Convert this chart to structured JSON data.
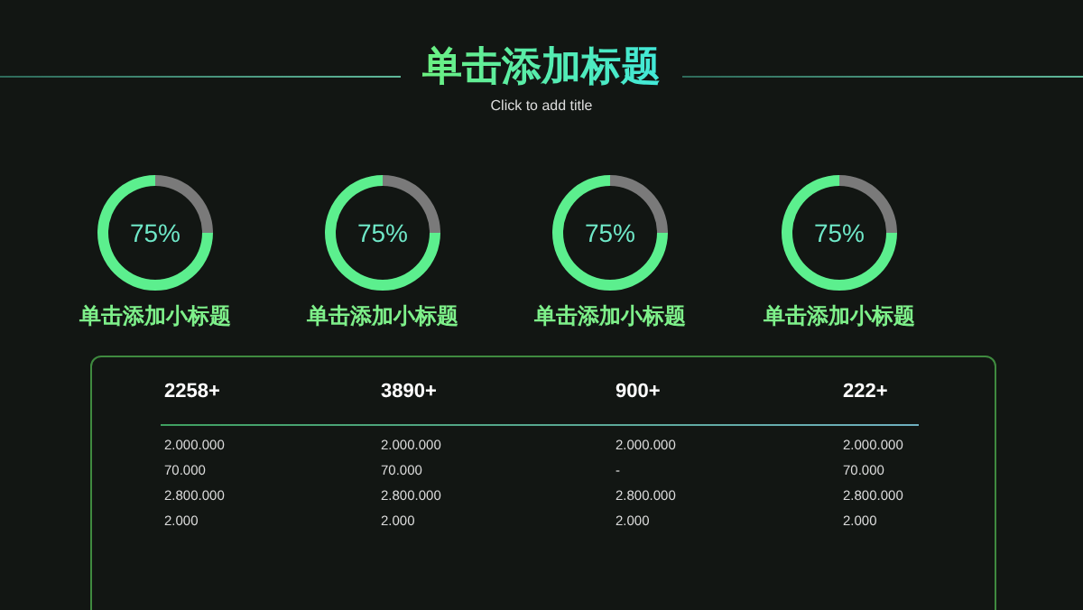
{
  "chart_data": [
    {
      "type": "donut",
      "title": "单击添加小标题",
      "categories": [
        null,
        null
      ],
      "values": [
        75,
        25
      ],
      "colors": [
        "#5cef8e",
        "#7a7a7a"
      ],
      "annotations": [
        "75%"
      ]
    },
    {
      "type": "donut",
      "title": "单击添加小标题",
      "categories": [
        null,
        null
      ],
      "values": [
        75,
        25
      ],
      "colors": [
        "#5cef8e",
        "#7a7a7a"
      ],
      "annotations": [
        "75%"
      ]
    },
    {
      "type": "donut",
      "title": "单击添加小标题",
      "categories": [
        null,
        null
      ],
      "values": [
        75,
        25
      ],
      "colors": [
        "#5cef8e",
        "#7a7a7a"
      ],
      "annotations": [
        "75%"
      ]
    },
    {
      "type": "donut",
      "title": "单击添加小标题",
      "categories": [
        null,
        null
      ],
      "values": [
        75,
        25
      ],
      "colors": [
        "#5cef8e",
        "#7a7a7a"
      ],
      "annotations": [
        "75%"
      ]
    },
    {
      "type": "other",
      "title": "单击添加标题",
      "subtitle": "Click to add title",
      "annotations": [
        "2258+",
        "3890+",
        "900+",
        "222+",
        "2.000.000",
        "2.000.000",
        "2.000.000",
        "2.000.000",
        "70.000",
        "70.000",
        "-",
        "70.000",
        "2.800.000",
        "2.800.000",
        "2.800.000",
        "2.800.000",
        "2.000",
        "2.000",
        "2.000",
        "2.000"
      ]
    }
  ]
}
